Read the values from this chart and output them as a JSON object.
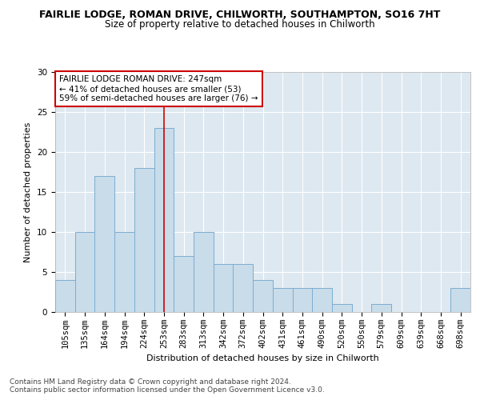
{
  "title1": "FAIRLIE LODGE, ROMAN DRIVE, CHILWORTH, SOUTHAMPTON, SO16 7HT",
  "title2": "Size of property relative to detached houses in Chilworth",
  "xlabel": "Distribution of detached houses by size in Chilworth",
  "ylabel": "Number of detached properties",
  "categories": [
    "105sqm",
    "135sqm",
    "164sqm",
    "194sqm",
    "224sqm",
    "253sqm",
    "283sqm",
    "313sqm",
    "342sqm",
    "372sqm",
    "402sqm",
    "431sqm",
    "461sqm",
    "490sqm",
    "520sqm",
    "550sqm",
    "579sqm",
    "609sqm",
    "639sqm",
    "668sqm",
    "698sqm"
  ],
  "values": [
    4,
    10,
    17,
    10,
    18,
    23,
    7,
    10,
    6,
    6,
    4,
    3,
    3,
    3,
    1,
    0,
    1,
    0,
    0,
    0,
    3
  ],
  "bar_color": "#c9dcea",
  "bar_edge_color": "#7badd1",
  "vline_x": 5.0,
  "vline_color": "#cc0000",
  "annotation_text": "FAIRLIE LODGE ROMAN DRIVE: 247sqm\n← 41% of detached houses are smaller (53)\n59% of semi-detached houses are larger (76) →",
  "annotation_box_color": "#ffffff",
  "annotation_box_edge": "#cc0000",
  "ylim": [
    0,
    30
  ],
  "yticks": [
    0,
    5,
    10,
    15,
    20,
    25,
    30
  ],
  "footer": "Contains HM Land Registry data © Crown copyright and database right 2024.\nContains public sector information licensed under the Open Government Licence v3.0.",
  "bg_color": "#dde8f0",
  "title1_fontsize": 9,
  "title2_fontsize": 8.5,
  "axis_label_fontsize": 8,
  "tick_fontsize": 7.5,
  "annotation_fontsize": 7.5,
  "footer_fontsize": 6.5
}
